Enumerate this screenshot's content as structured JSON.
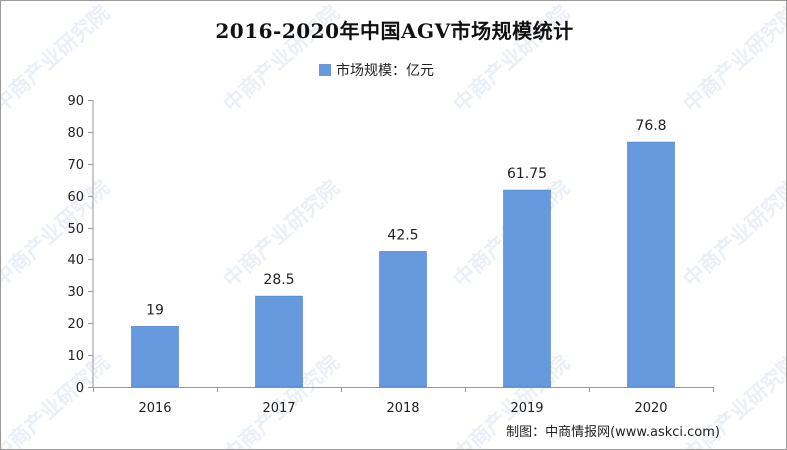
{
  "chart_data": {
    "type": "bar",
    "title": "2016-2020年中国AGV市场规模统计",
    "categories": [
      "2016",
      "2017",
      "2018",
      "2019",
      "2020"
    ],
    "series": [
      {
        "name": "市场规模：亿元",
        "values": [
          19,
          28.5,
          42.5,
          61.75,
          76.8
        ],
        "value_labels": [
          "19",
          "28.5",
          "42.5",
          "61.75",
          "76.8"
        ],
        "color": "#6699dd"
      }
    ],
    "xlabel": "",
    "ylabel": "",
    "ylim": [
      0,
      90
    ],
    "yticks": [
      0,
      10,
      20,
      30,
      40,
      50,
      60,
      70,
      80,
      90
    ],
    "grid": false,
    "legend": "top-center"
  },
  "footer": {
    "source": "制图：中商情报网(www.askci.com)"
  },
  "watermark": {
    "text": "中商产业研究院"
  },
  "colors": {
    "bar": "#6699dd",
    "axis": "#999999",
    "text": "#222222"
  }
}
